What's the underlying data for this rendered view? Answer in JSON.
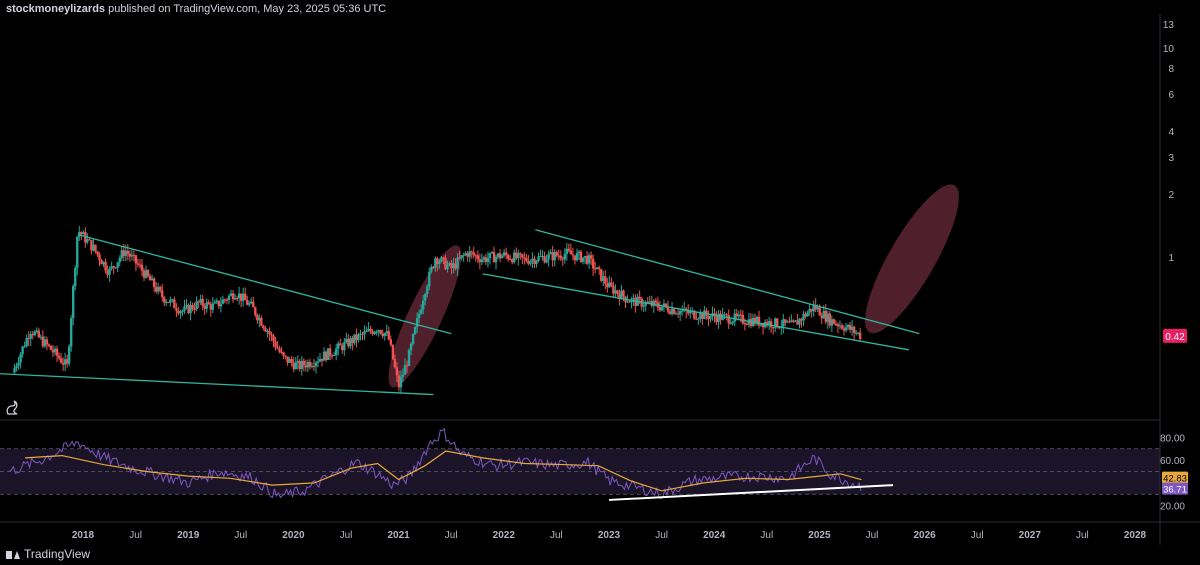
{
  "header": {
    "author": "stockmoneylizards",
    "published": "published on TradingView.com, May 23, 2025 05:36 UTC"
  },
  "brand": {
    "name": "TradingView"
  },
  "colors": {
    "up": "#26a69a",
    "down": "#ef5350",
    "trend": "#2fb59f",
    "ellipse": "#6b2a3b",
    "rsi": "#7e57c2",
    "ma": "#e8a93a",
    "price_tag": "#e91e63",
    "rsi_band": "#1b1428"
  },
  "chart_data": {
    "type": "candlestick",
    "price_axis": {
      "scale": "log",
      "ticks": [
        "13",
        "10",
        "8",
        "6",
        "4",
        "3",
        "2",
        "1"
      ],
      "tick_values": [
        13,
        10,
        8,
        6,
        4,
        3,
        2,
        1
      ],
      "range": [
        0.17,
        14.5
      ]
    },
    "last_price": "0.42",
    "time_axis": [
      "2018",
      "Jul",
      "2019",
      "Jul",
      "2020",
      "Jul",
      "2021",
      "Jul",
      "2022",
      "Jul",
      "2023",
      "Jul",
      "2024",
      "Jul",
      "2025",
      "Jul",
      "2026",
      "Jul",
      "2027",
      "Jul",
      "2028"
    ],
    "time_axis_values": [
      2018.0,
      2018.5,
      2019.0,
      2019.5,
      2020.0,
      2020.5,
      2021.0,
      2021.5,
      2022.0,
      2022.5,
      2023.0,
      2023.5,
      2024.0,
      2024.5,
      2025.0,
      2025.5,
      2026.0,
      2026.5,
      2027.0,
      2027.5,
      2028.0
    ],
    "price_path": [
      [
        2017.33,
        0.28
      ],
      [
        2017.5,
        0.45
      ],
      [
        2017.7,
        0.36
      ],
      [
        2017.85,
        0.3
      ],
      [
        2017.95,
        1.35
      ],
      [
        2018.1,
        1.1
      ],
      [
        2018.25,
        0.85
      ],
      [
        2018.4,
        1.08
      ],
      [
        2018.55,
        0.88
      ],
      [
        2018.75,
        0.65
      ],
      [
        2018.95,
        0.55
      ],
      [
        2019.1,
        0.6
      ],
      [
        2019.25,
        0.58
      ],
      [
        2019.45,
        0.68
      ],
      [
        2019.6,
        0.58
      ],
      [
        2019.75,
        0.45
      ],
      [
        2019.9,
        0.33
      ],
      [
        2020.05,
        0.3
      ],
      [
        2020.2,
        0.32
      ],
      [
        2020.4,
        0.36
      ],
      [
        2020.6,
        0.41
      ],
      [
        2020.8,
        0.46
      ],
      [
        2020.9,
        0.42
      ],
      [
        2021.0,
        0.24
      ],
      [
        2021.1,
        0.34
      ],
      [
        2021.25,
        0.7
      ],
      [
        2021.35,
        1.0
      ],
      [
        2021.5,
        0.88
      ],
      [
        2021.65,
        1.05
      ],
      [
        2021.8,
        0.98
      ],
      [
        2022.0,
        1.02
      ],
      [
        2022.2,
        0.97
      ],
      [
        2022.4,
        1.0
      ],
      [
        2022.6,
        1.04
      ],
      [
        2022.8,
        0.98
      ],
      [
        2023.0,
        0.72
      ],
      [
        2023.2,
        0.62
      ],
      [
        2023.5,
        0.58
      ],
      [
        2023.75,
        0.54
      ],
      [
        2024.0,
        0.52
      ],
      [
        2024.3,
        0.5
      ],
      [
        2024.6,
        0.48
      ],
      [
        2024.75,
        0.47
      ],
      [
        2024.95,
        0.58
      ],
      [
        2025.1,
        0.5
      ],
      [
        2025.3,
        0.45
      ],
      [
        2025.4,
        0.42
      ]
    ],
    "trendlines": [
      {
        "p1": [
          2017.95,
          1.28
        ],
        "p2": [
          2021.5,
          0.43
        ]
      },
      {
        "p1": [
          2017.0,
          0.28
        ],
        "p2": [
          2021.33,
          0.22
        ]
      },
      {
        "p1": [
          2022.3,
          1.35
        ],
        "p2": [
          2025.95,
          0.43
        ]
      },
      {
        "p1": [
          2021.8,
          0.83
        ],
        "p2": [
          2025.85,
          0.36
        ]
      }
    ],
    "ellipses": [
      {
        "center": [
          2021.25,
          0.52
        ]
      },
      {
        "center": [
          2025.88,
          0.98
        ]
      }
    ],
    "rsi": {
      "ticks": [
        "80.00",
        "60.00",
        "20.00"
      ],
      "tick_values": [
        80,
        60,
        20
      ],
      "band": [
        30,
        70
      ],
      "range": [
        10,
        90
      ],
      "current_rsi": "36.71",
      "current_ma": "42.83",
      "path": [
        [
          2017.3,
          50
        ],
        [
          2017.6,
          60
        ],
        [
          2017.95,
          76
        ],
        [
          2018.2,
          62
        ],
        [
          2018.5,
          52
        ],
        [
          2018.8,
          45
        ],
        [
          2019.0,
          40
        ],
        [
          2019.3,
          50
        ],
        [
          2019.6,
          45
        ],
        [
          2019.85,
          28
        ],
        [
          2020.1,
          33
        ],
        [
          2020.4,
          48
        ],
        [
          2020.6,
          58
        ],
        [
          2020.8,
          48
        ],
        [
          2020.95,
          38
        ],
        [
          2021.1,
          45
        ],
        [
          2021.3,
          75
        ],
        [
          2021.42,
          85
        ],
        [
          2021.6,
          65
        ],
        [
          2021.9,
          55
        ],
        [
          2022.2,
          58
        ],
        [
          2022.5,
          55
        ],
        [
          2022.8,
          58
        ],
        [
          2023.0,
          42
        ],
        [
          2023.3,
          35
        ],
        [
          2023.5,
          30
        ],
        [
          2023.8,
          42
        ],
        [
          2024.1,
          45
        ],
        [
          2024.4,
          46
        ],
        [
          2024.7,
          44
        ],
        [
          2024.95,
          62
        ],
        [
          2025.1,
          48
        ],
        [
          2025.3,
          40
        ],
        [
          2025.4,
          37
        ]
      ],
      "ma_path": [
        [
          2017.45,
          62
        ],
        [
          2017.8,
          64
        ],
        [
          2018.2,
          56
        ],
        [
          2018.6,
          50
        ],
        [
          2019.0,
          46
        ],
        [
          2019.4,
          44
        ],
        [
          2019.8,
          38
        ],
        [
          2020.2,
          40
        ],
        [
          2020.55,
          53
        ],
        [
          2020.8,
          57
        ],
        [
          2021.0,
          43
        ],
        [
          2021.25,
          55
        ],
        [
          2021.45,
          68
        ],
        [
          2021.8,
          62
        ],
        [
          2022.2,
          57
        ],
        [
          2022.6,
          56
        ],
        [
          2022.9,
          55
        ],
        [
          2023.2,
          42
        ],
        [
          2023.5,
          33
        ],
        [
          2023.9,
          40
        ],
        [
          2024.3,
          44
        ],
        [
          2024.7,
          43
        ],
        [
          2025.0,
          46
        ],
        [
          2025.2,
          48
        ],
        [
          2025.4,
          42.8
        ]
      ],
      "support_line": {
        "p1": [
          2023.0,
          25
        ],
        "p2": [
          2025.7,
          38
        ]
      }
    }
  }
}
